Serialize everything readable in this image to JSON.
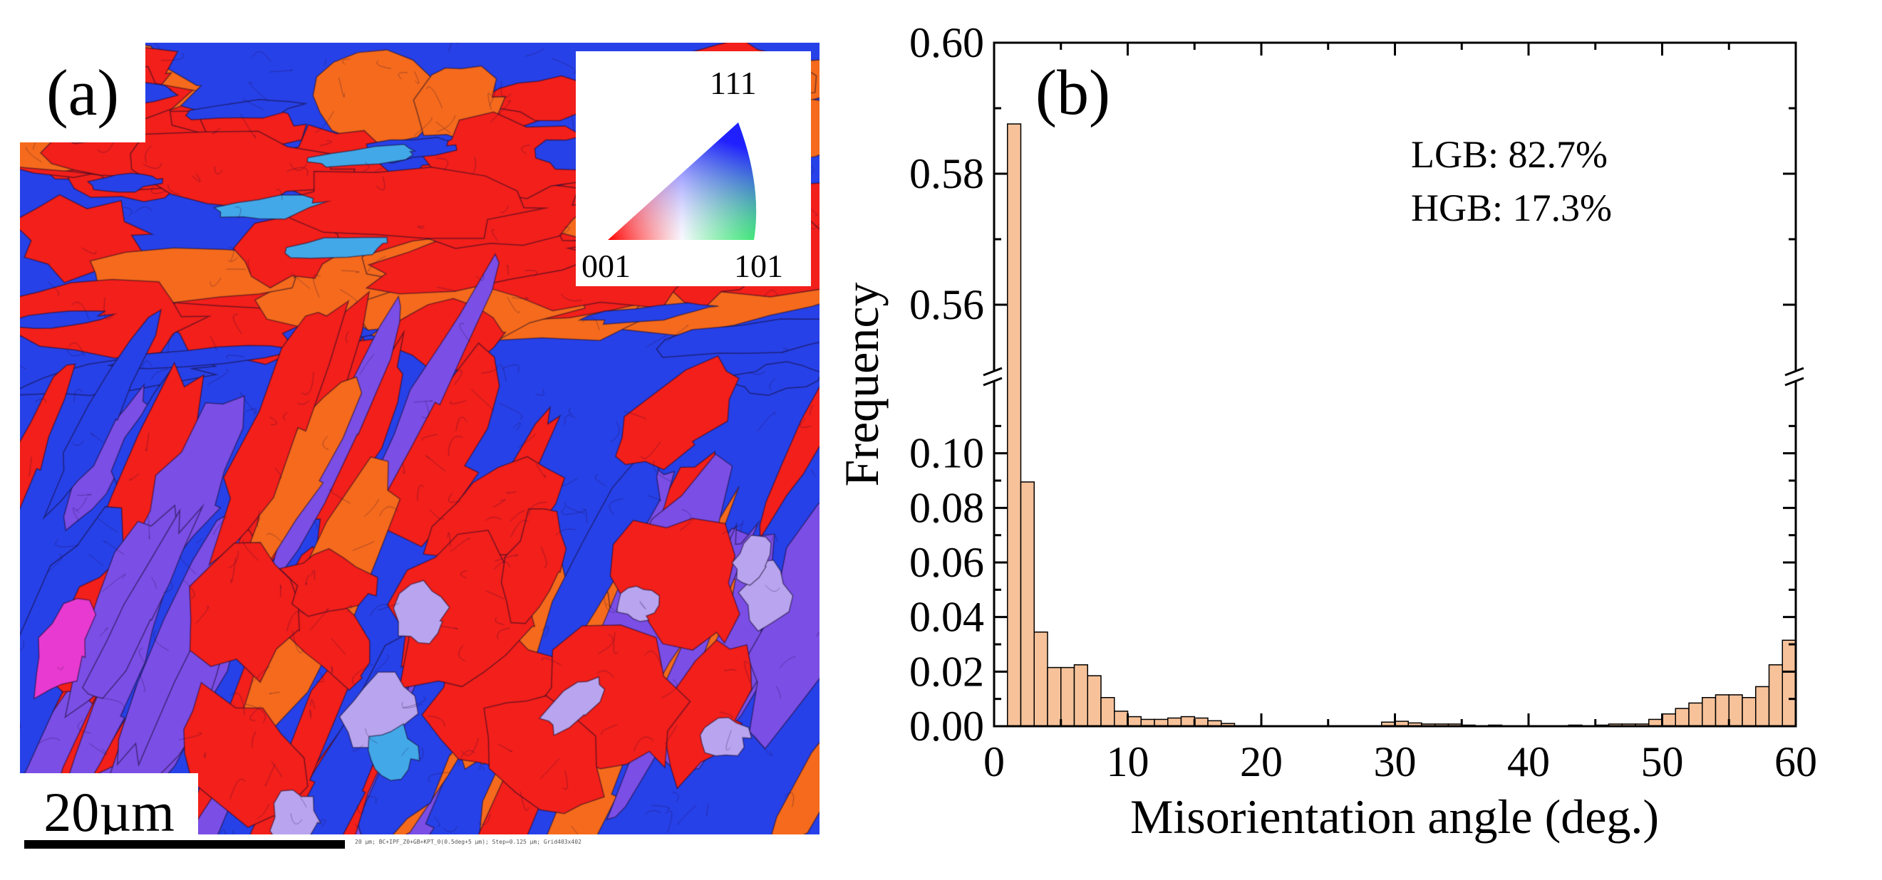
{
  "panel_a": {
    "label": "(a)",
    "scale_label": "20µm",
    "footer_text": "20 µm; BC+IPF_Z0+GB+KPT_0(0.5deg+5 µm); Step=0.125 µm; Grid403x402",
    "ipf_legend": {
      "v111": "111",
      "v001": "001",
      "v101": "101"
    },
    "colors": {
      "red": "#f21f1a",
      "orange": "#f56a1c",
      "blue": "#2741e8",
      "purple": "#7b4ee6",
      "cyan": "#43a8e8",
      "magenta": "#e83ad0"
    }
  },
  "chart_data": {
    "type": "bar",
    "panel_label": "(b)",
    "xlabel": "Misorientation angle (deg.)",
    "ylabel": "Frequency",
    "xlim": [
      0,
      60
    ],
    "xticks": [
      0,
      10,
      20,
      30,
      40,
      50,
      60
    ],
    "broken_y_axis": true,
    "ylim_lower": [
      0,
      0.12
    ],
    "ylim_upper": [
      0.55,
      0.6
    ],
    "yticks_lower": [
      "0.00",
      "0.02",
      "0.04",
      "0.06",
      "0.08",
      "0.10"
    ],
    "yticks_upper": [
      "0.56",
      "0.58",
      "0.60"
    ],
    "bin_width": 1,
    "bins_start": [
      1,
      2,
      3,
      4,
      5,
      6,
      7,
      8,
      9,
      10,
      11,
      12,
      13,
      14,
      15,
      16,
      17,
      18,
      19,
      20,
      21,
      22,
      23,
      24,
      25,
      26,
      27,
      28,
      29,
      30,
      31,
      32,
      33,
      34,
      35,
      36,
      37,
      38,
      39,
      40,
      41,
      42,
      43,
      44,
      45,
      46,
      47,
      48,
      49,
      50,
      51,
      52,
      53,
      54,
      55,
      56,
      57,
      58,
      59
    ],
    "values": [
      0.5876,
      0.0895,
      0.0345,
      0.0215,
      0.0215,
      0.0225,
      0.0185,
      0.0105,
      0.0055,
      0.0035,
      0.0025,
      0.0025,
      0.003,
      0.0035,
      0.003,
      0.002,
      0.001,
      0,
      0,
      0,
      0,
      0,
      0,
      0,
      0,
      0,
      0,
      0,
      0.0015,
      0.0018,
      0.0012,
      0.0008,
      0.0008,
      0.0008,
      0.0004,
      0,
      0.0004,
      0,
      0,
      0,
      0,
      0,
      0.0004,
      0,
      0.0004,
      0.0008,
      0.0008,
      0.0008,
      0.0025,
      0.0045,
      0.0065,
      0.0085,
      0.0105,
      0.0115,
      0.0115,
      0.0105,
      0.0145,
      0.0225,
      0.0315
    ],
    "bar_color": "#f7c29a",
    "annotations": [
      "LGB: 82.7%",
      "HGB: 17.3%"
    ]
  }
}
